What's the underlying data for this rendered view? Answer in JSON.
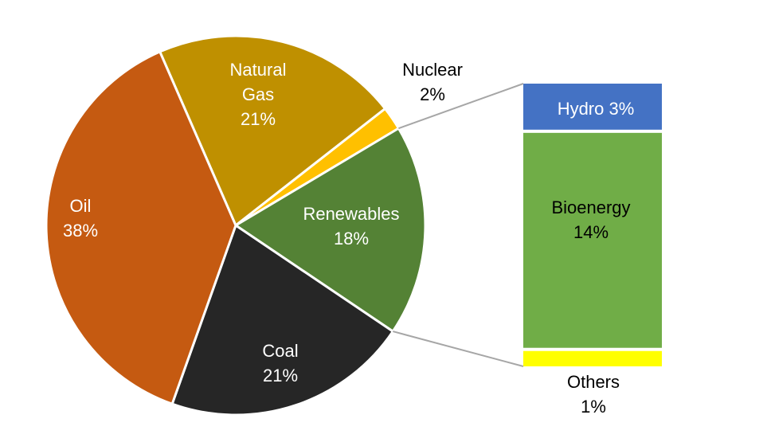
{
  "chart_data": {
    "type": "bar-of-pie",
    "categories": [
      "Natural Gas",
      "Nuclear",
      "Renewables",
      "Coal",
      "Oil"
    ],
    "values": [
      21,
      2,
      18,
      21,
      38
    ],
    "value_labels": [
      "21%",
      "2%",
      "18%",
      "21%",
      "38%"
    ],
    "colors": [
      "#bf9000",
      "#ffc000",
      "#548235",
      "#262626",
      "#c55a11"
    ],
    "breakdown": {
      "categories": [
        "Hydro",
        "Bioenergy",
        "Others"
      ],
      "values": [
        3,
        14,
        1
      ],
      "value_labels": [
        "3%",
        "14%",
        "1%"
      ],
      "colors": [
        "#4472c4",
        "#70ad47",
        "#ffff00"
      ]
    }
  }
}
